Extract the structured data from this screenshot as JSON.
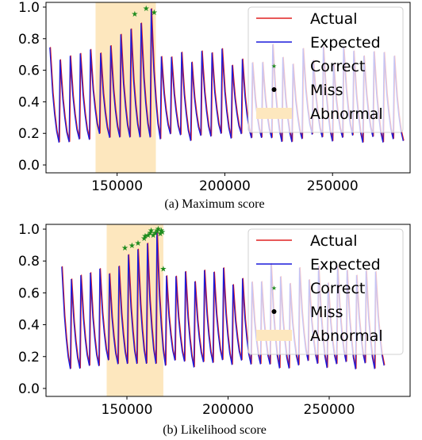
{
  "chart_data": [
    {
      "type": "line",
      "caption": "(a) Maximum score",
      "xlim": [
        117000,
        286000
      ],
      "ylim": [
        -0.05,
        1.03
      ],
      "x_ticks": [
        150000,
        200000,
        250000
      ],
      "x_tick_labels": [
        "150000",
        "200000",
        "250000"
      ],
      "y_ticks": [
        0.0,
        0.2,
        0.4,
        0.6,
        0.8,
        1.0
      ],
      "y_tick_labels": [
        "0.0",
        "0.2",
        "0.4",
        "0.6",
        "0.8",
        "1.0"
      ],
      "grid": false,
      "legend_position": "top-right",
      "abnormal_region": {
        "x0": 140000,
        "x1": 168000
      },
      "signal": {
        "x_start": 118500,
        "x_end": 280000,
        "cycle_length": 4700,
        "base_peak": 0.75,
        "trough": 0.14,
        "abnormal_peak_rise": 0.22
      },
      "series": [
        {
          "name": "Actual",
          "role": "actual",
          "color": "#e02020"
        },
        {
          "name": "Expected",
          "role": "expected",
          "color": "#1a1adb"
        }
      ],
      "markers": [
        {
          "name": "Correct",
          "role": "correct",
          "color": "#1e8c1e",
          "points": [
            [
              158200,
              0.955
            ],
            [
              163500,
              0.99
            ],
            [
              167200,
              0.965
            ]
          ]
        },
        {
          "name": "Miss",
          "role": "miss",
          "color": "#000000",
          "points": []
        }
      ],
      "legend": [
        {
          "label": "Actual",
          "kind": "line",
          "color": "#e02020"
        },
        {
          "label": "Expected",
          "kind": "line",
          "color": "#1a1adb"
        },
        {
          "label": "Correct",
          "kind": "star",
          "color": "#1e8c1e"
        },
        {
          "label": "Miss",
          "kind": "dot",
          "color": "#000000"
        },
        {
          "label": "Abnormal",
          "kind": "patch",
          "color": "#fde7be"
        }
      ]
    },
    {
      "type": "line",
      "caption": "(b) Likelihood score",
      "xlim": [
        110000,
        290000
      ],
      "ylim": [
        -0.05,
        1.03
      ],
      "x_ticks": [
        150000,
        200000,
        250000
      ],
      "x_tick_labels": [
        "150000",
        "200000",
        "250000"
      ],
      "y_ticks": [
        0.0,
        0.2,
        0.4,
        0.6,
        0.8,
        1.0
      ],
      "y_tick_labels": [
        "0.0",
        "0.2",
        "0.4",
        "0.6",
        "0.8",
        "1.0"
      ],
      "grid": false,
      "legend_position": "top-right",
      "abnormal_region": {
        "x0": 140000,
        "x1": 168000
      },
      "signal": {
        "x_start": 117500,
        "x_end": 276000,
        "cycle_length": 4700,
        "base_peak": 0.77,
        "trough": 0.12,
        "abnormal_peak_rise": 0.22
      },
      "series": [
        {
          "name": "Actual",
          "role": "actual",
          "color": "#e02020"
        },
        {
          "name": "Expected",
          "role": "expected",
          "color": "#1a1adb"
        }
      ],
      "markers": [
        {
          "name": "Correct",
          "role": "correct",
          "color": "#1e8c1e",
          "points": [
            [
              149000,
              0.88
            ],
            [
              152500,
              0.895
            ],
            [
              155500,
              0.91
            ],
            [
              158500,
              0.94
            ],
            [
              159000,
              0.955
            ],
            [
              160500,
              0.96
            ],
            [
              161500,
              0.975
            ],
            [
              162000,
              0.99
            ],
            [
              163000,
              0.96
            ],
            [
              164000,
              0.975
            ],
            [
              165000,
              0.99
            ],
            [
              165500,
              1.0
            ],
            [
              166500,
              0.97
            ],
            [
              167000,
              0.99
            ],
            [
              167500,
              0.98
            ],
            [
              168000,
              0.75
            ]
          ]
        },
        {
          "name": "Miss",
          "role": "miss",
          "color": "#000000",
          "points": []
        }
      ],
      "legend": [
        {
          "label": "Actual",
          "kind": "line",
          "color": "#e02020"
        },
        {
          "label": "Expected",
          "kind": "line",
          "color": "#1a1adb"
        },
        {
          "label": "Correct",
          "kind": "star",
          "color": "#1e8c1e"
        },
        {
          "label": "Miss",
          "kind": "dot",
          "color": "#000000"
        },
        {
          "label": "Abnormal",
          "kind": "patch",
          "color": "#fde7be"
        }
      ]
    }
  ]
}
